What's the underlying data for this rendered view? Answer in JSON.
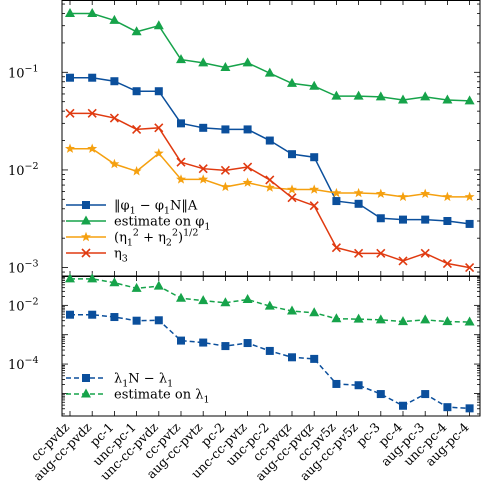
{
  "chart_data": [
    {
      "type": "line",
      "y_scale": "log",
      "ylim": [
        0.00082,
        0.55
      ],
      "y_ticks": [
        {
          "value": 0.1,
          "label": "10",
          "exp": "−1"
        },
        {
          "value": 0.01,
          "label": "10",
          "exp": "−2"
        },
        {
          "value": 0.001,
          "label": "10",
          "exp": "−3"
        }
      ],
      "grid": false,
      "legend_position": "lower-left",
      "categories": [
        "cc-pvdz",
        "aug-cc-pvdz",
        "pc-1",
        "unc-pc-1",
        "unc-cc-pvdz",
        "cc-pvtz",
        "aug-cc-pvtz",
        "pc-2",
        "unc-cc-pvtz",
        "unc-pc-2",
        "cc-pvqz",
        "aug-cc-pvqz",
        "cc-pv5z",
        "aug-cc-pv5z",
        "pc-3",
        "pc-4",
        "aug-pc-3",
        "unc-pc-4",
        "aug-pc-4"
      ],
      "series": [
        {
          "name": "‖φ₁ − φ₁N‖A",
          "color": "#0b4f9c",
          "marker": "square",
          "dashed": false,
          "values": [
            0.088,
            0.088,
            0.081,
            0.064,
            0.064,
            0.03,
            0.027,
            0.026,
            0.026,
            0.02,
            0.0145,
            0.0135,
            0.0048,
            0.0045,
            0.0032,
            0.0031,
            0.0031,
            0.003,
            0.0028
          ]
        },
        {
          "name": "estimate on φ₁",
          "color": "#16a34a",
          "marker": "triangle",
          "dashed": false,
          "values": [
            0.4,
            0.4,
            0.34,
            0.26,
            0.3,
            0.135,
            0.125,
            0.112,
            0.125,
            0.098,
            0.077,
            0.072,
            0.057,
            0.057,
            0.056,
            0.052,
            0.056,
            0.052,
            0.051
          ]
        },
        {
          "name": "(η₁² + η₂²)^1/2",
          "color": "#f5a00f",
          "marker": "star",
          "dashed": false,
          "values": [
            0.0165,
            0.0165,
            0.0115,
            0.0097,
            0.0148,
            0.008,
            0.008,
            0.0067,
            0.0074,
            0.0066,
            0.0063,
            0.0063,
            0.0058,
            0.0058,
            0.0057,
            0.0053,
            0.0057,
            0.0053,
            0.0053
          ]
        },
        {
          "name": "η₃",
          "color": "#e03a10",
          "marker": "x",
          "dashed": false,
          "values": [
            0.038,
            0.038,
            0.034,
            0.026,
            0.027,
            0.012,
            0.0103,
            0.0099,
            0.0107,
            0.0079,
            0.0052,
            0.0043,
            0.0016,
            0.0014,
            0.0014,
            0.00117,
            0.0014,
            0.0011,
            0.001
          ]
        }
      ]
    },
    {
      "type": "line",
      "y_scale": "log",
      "ylim": [
        1.7e-06,
        0.1
      ],
      "y_ticks": [
        {
          "value": 0.01,
          "label": "10",
          "exp": "−2"
        },
        {
          "value": 0.0001,
          "label": "10",
          "exp": "−4"
        }
      ],
      "grid": false,
      "legend_position": "lower-left",
      "series": [
        {
          "name": "λ₁N − λ₁",
          "color": "#0b4f9c",
          "marker": "square",
          "dashed": true,
          "values": [
            0.0048,
            0.0048,
            0.004,
            0.003,
            0.0031,
            0.00063,
            0.00054,
            0.00041,
            0.00052,
            0.00028,
            0.00017,
            0.00015,
            2.1e-05,
            1.9e-05,
            9.5e-06,
            3.8e-06,
            9.5e-06,
            3.4e-06,
            3.1e-06
          ]
        },
        {
          "name": "estimate on λ₁",
          "color": "#16a34a",
          "marker": "triangle",
          "dashed": true,
          "values": [
            0.08,
            0.08,
            0.059,
            0.038,
            0.045,
            0.0175,
            0.0145,
            0.0123,
            0.0158,
            0.0094,
            0.0064,
            0.0056,
            0.0035,
            0.0034,
            0.0032,
            0.0028,
            0.0032,
            0.0028,
            0.0027
          ]
        }
      ]
    }
  ]
}
